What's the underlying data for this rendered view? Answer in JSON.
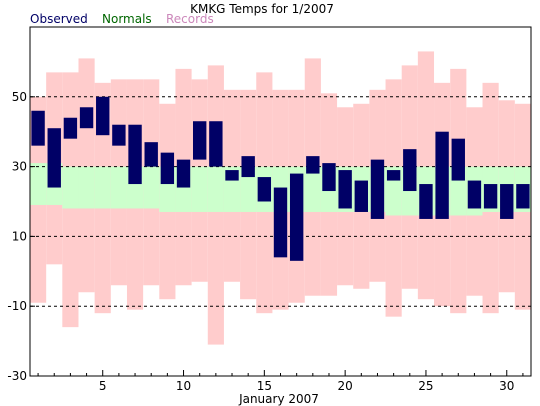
{
  "chart_data": {
    "type": "bar",
    "title": "KMKG Temps for 1/2007",
    "xlabel": "January 2007",
    "ylabel": "",
    "ylim": [
      -30,
      70
    ],
    "xlim": [
      0.5,
      31.5
    ],
    "grid": "dashed horizontal at 50, 30, 10, -10",
    "legend_placement": "top-left",
    "y_ticks": [
      {
        "value": 50,
        "label": "50"
      },
      {
        "value": 30,
        "label": "30"
      },
      {
        "value": 10,
        "label": "10"
      },
      {
        "value": -10,
        "label": "-10"
      },
      {
        "value": -30,
        "label": "-30"
      }
    ],
    "x_ticks": [
      {
        "value": 5,
        "label": "5"
      },
      {
        "value": 10,
        "label": "10"
      },
      {
        "value": 15,
        "label": "15"
      },
      {
        "value": 20,
        "label": "20"
      },
      {
        "value": 25,
        "label": "25"
      },
      {
        "value": 30,
        "label": "30"
      }
    ],
    "days": [
      1,
      2,
      3,
      4,
      5,
      6,
      7,
      8,
      9,
      10,
      11,
      12,
      13,
      14,
      15,
      16,
      17,
      18,
      19,
      20,
      21,
      22,
      23,
      24,
      25,
      26,
      27,
      28,
      29,
      30,
      31
    ],
    "series": [
      {
        "name": "Records",
        "color": "#ffcccc",
        "high": [
          50,
          57,
          57,
          61,
          54,
          55,
          55,
          55,
          48,
          58,
          55,
          59,
          52,
          52,
          57,
          52,
          52,
          61,
          51,
          47,
          48,
          52,
          55,
          59,
          63,
          54,
          58,
          47,
          54,
          49,
          48
        ],
        "low": [
          -9,
          2,
          -16,
          -6,
          -12,
          -4,
          -11,
          -4,
          -8,
          -4,
          -3,
          -21,
          -3,
          -8,
          -12,
          -11,
          -9,
          -7,
          -7,
          -4,
          -5,
          -3,
          -13,
          -5,
          -8,
          -10,
          -12,
          -7,
          -12,
          -6,
          -11
        ]
      },
      {
        "name": "Normals",
        "color": "#ccffcc",
        "high": [
          31,
          31,
          30,
          30,
          30,
          30,
          30,
          30,
          30,
          30,
          30,
          30,
          30,
          30,
          30,
          30,
          30,
          30,
          30,
          30,
          30,
          30,
          30,
          30,
          30,
          30,
          30,
          30,
          30,
          30,
          30
        ],
        "low": [
          19,
          19,
          18,
          18,
          18,
          18,
          18,
          18,
          17,
          17,
          17,
          17,
          17,
          17,
          17,
          17,
          17,
          17,
          17,
          17,
          17,
          17,
          16,
          16,
          16,
          16,
          16,
          16,
          17,
          17,
          17
        ]
      },
      {
        "name": "Observed",
        "color": "#000066",
        "high": [
          46,
          41,
          44,
          47,
          50,
          42,
          42,
          37,
          34,
          32,
          43,
          43,
          29,
          33,
          27,
          24,
          28,
          33,
          31,
          29,
          26,
          32,
          29,
          35,
          25,
          40,
          38,
          26,
          25,
          25,
          25
        ],
        "low": [
          36,
          24,
          38,
          41,
          39,
          36,
          25,
          30,
          25,
          24,
          32,
          30,
          26,
          27,
          20,
          4,
          3,
          28,
          23,
          18,
          17,
          15,
          26,
          23,
          15,
          15,
          26,
          18,
          18,
          15,
          18
        ]
      }
    ]
  }
}
